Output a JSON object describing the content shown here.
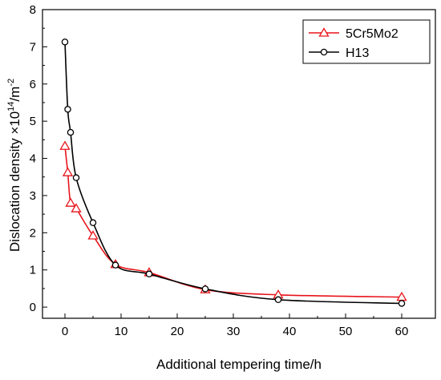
{
  "chart_data": {
    "type": "line",
    "xlabel": "Additional tempering time/h",
    "ylabel": {
      "prefix": "Dislocation density ×10",
      "exp": "14",
      "mid": "/m",
      "exp2": "-2"
    },
    "xlim": [
      -4,
      66
    ],
    "ylim": [
      -0.3,
      8
    ],
    "xticks": [
      0,
      10,
      20,
      30,
      40,
      50,
      60
    ],
    "yticks": [
      0,
      1,
      2,
      3,
      4,
      5,
      6,
      7,
      8
    ],
    "grid": false,
    "legend": "top-right",
    "series": [
      {
        "name": "5Cr5Mo2",
        "color": "#e8141b",
        "marker": "triangle-open",
        "x": [
          0,
          0.5,
          1,
          2,
          5,
          9,
          15,
          25,
          38,
          60
        ],
        "y": [
          4.33,
          3.62,
          2.8,
          2.65,
          1.92,
          1.15,
          0.93,
          0.47,
          0.33,
          0.27
        ]
      },
      {
        "name": "H13",
        "color": "#000000",
        "marker": "circle-open",
        "x": [
          0,
          0.5,
          1,
          2,
          5,
          9,
          15,
          25,
          38,
          60
        ],
        "y": [
          7.13,
          5.32,
          4.7,
          3.48,
          2.27,
          1.13,
          0.89,
          0.49,
          0.2,
          0.1
        ]
      }
    ]
  }
}
